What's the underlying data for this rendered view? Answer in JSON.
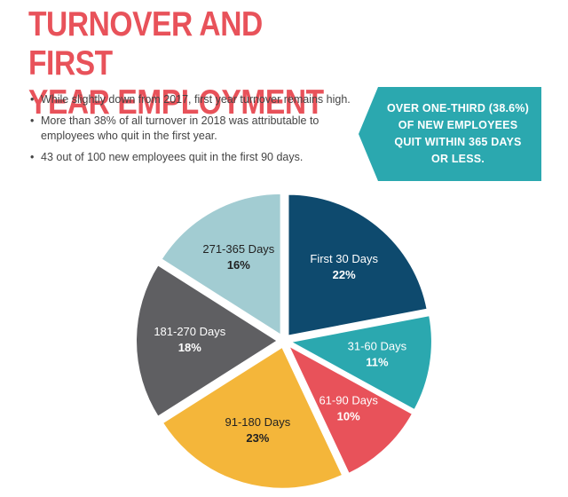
{
  "header": {
    "title_line1": "TURNOVER AND FIRST",
    "title_line2": "YEAR EMPLOYMENT"
  },
  "bullets": [
    "While slightly down from 2017, first year turnover remains high.",
    "More than 38% of all turnover in 2018 was attributable to employees who quit in the first year.",
    "43 out of 100 new employees quit in the first 90 days."
  ],
  "callout": {
    "lines": [
      "OVER ONE-THIRD (38.6%)",
      "OF NEW EMPLOYEES",
      "QUIT WITHIN 365 DAYS",
      "OR LESS."
    ],
    "color": "#2BA8AF"
  },
  "chart_data": {
    "type": "pie",
    "start_angle_deg": 0,
    "direction": "clockwise",
    "slices": [
      {
        "label": "First 30 Days",
        "value": 22,
        "value_label": "22%",
        "color": "#0E4A6E",
        "text_color": "#ffffff"
      },
      {
        "label": "31-60 Days",
        "value": 11,
        "value_label": "11%",
        "color": "#2BA8AF",
        "text_color": "#ffffff"
      },
      {
        "label": "61-90 Days",
        "value": 10,
        "value_label": "10%",
        "color": "#E8525A",
        "text_color": "#ffffff"
      },
      {
        "label": "91-180 Days",
        "value": 23,
        "value_label": "23%",
        "color": "#F4B63A",
        "text_color": "#222222"
      },
      {
        "label": "181-270 Days",
        "value": 18,
        "value_label": "18%",
        "color": "#5F5F62",
        "text_color": "#ffffff"
      },
      {
        "label": "271-365 Days",
        "value": 16,
        "value_label": "16%",
        "color": "#A2CCD2",
        "text_color": "#222222"
      }
    ]
  }
}
